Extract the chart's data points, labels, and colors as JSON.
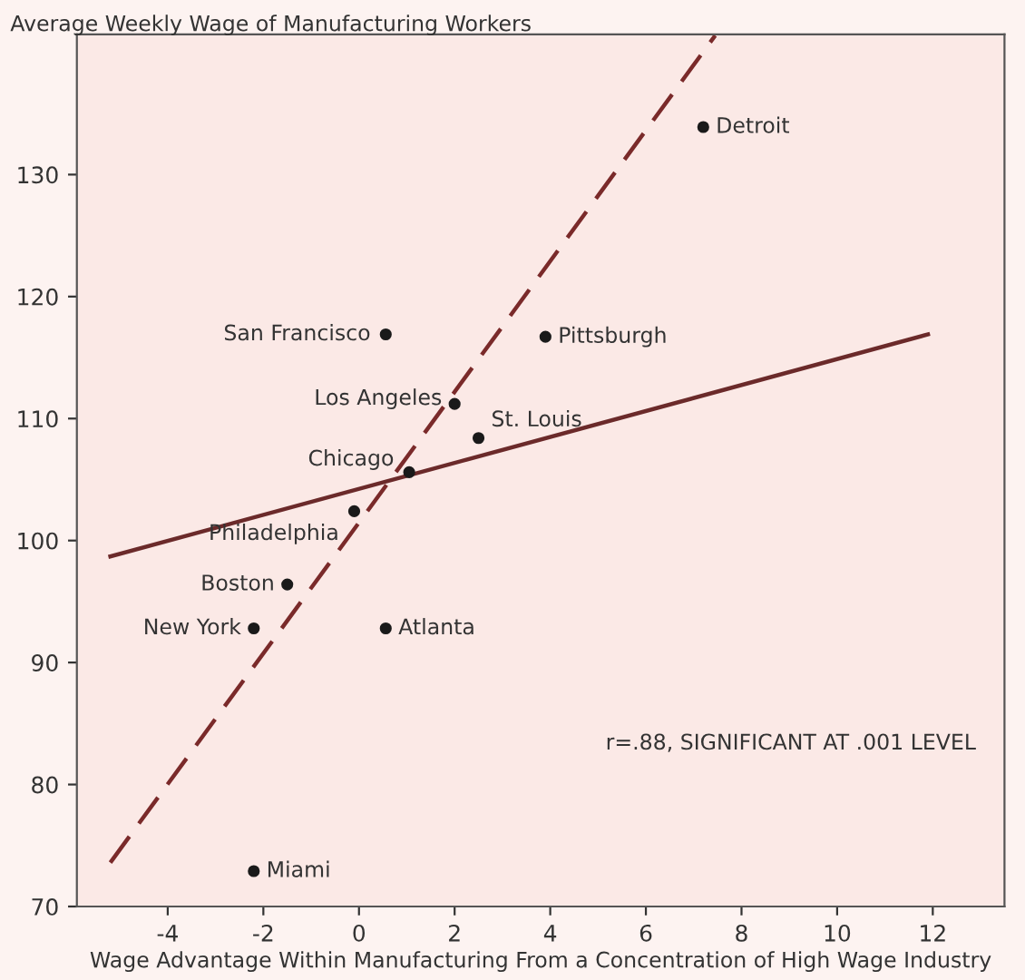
{
  "chart_data": {
    "type": "scatter",
    "ylabel": "Average Weekly Wage of Manufacturing Workers",
    "xlabel": "Wage Advantage Within Manufacturing From a Concentration of High Wage Industry",
    "xlim": [
      -5.9,
      13.5
    ],
    "ylim": [
      70,
      141.5
    ],
    "xticks": [
      -4,
      -2,
      0,
      2,
      4,
      6,
      8,
      10,
      12
    ],
    "yticks": [
      70,
      80,
      90,
      100,
      110,
      120,
      130
    ],
    "grid": false,
    "marker": "circle",
    "series": [
      {
        "color": "#1a1a1a",
        "x": [
          7.2,
          0.56,
          3.9,
          2.0,
          2.5,
          1.05,
          -0.1,
          -1.5,
          -2.2,
          0.56,
          -2.2
        ],
        "values": [
          133.9,
          116.9,
          116.7,
          111.2,
          108.4,
          105.6,
          102.4,
          96.4,
          92.8,
          92.8,
          72.9
        ]
      },
      {
        "type": "line",
        "color": "#7a2a2a",
        "line_style": "dashed",
        "marker": "none",
        "x": [
          -5.2,
          7.45
        ],
        "values": [
          73.6,
          141.4
        ]
      },
      {
        "type": "line",
        "color": "#6b2a2a",
        "line_style": "solid",
        "marker": "none",
        "x": [
          -5.2,
          11.9
        ],
        "values": [
          98.7,
          116.9
        ]
      }
    ],
    "annotations": [
      {
        "text": "Detroit",
        "x": 7.2,
        "y": 133.9
      },
      {
        "text": "San Francisco",
        "x": 0.56,
        "y": 116.9
      },
      {
        "text": "Pittsburgh",
        "x": 3.9,
        "y": 116.7
      },
      {
        "text": "Los Angeles",
        "x": 2.0,
        "y": 111.2
      },
      {
        "text": "St. Louis",
        "x": 2.5,
        "y": 108.4
      },
      {
        "text": "Chicago",
        "x": 1.05,
        "y": 105.6
      },
      {
        "text": "Philadelphia",
        "x": -0.1,
        "y": 102.4
      },
      {
        "text": "Boston",
        "x": -1.5,
        "y": 96.4
      },
      {
        "text": "New York",
        "x": -2.2,
        "y": 92.8
      },
      {
        "text": "Atlanta",
        "x": 0.56,
        "y": 92.8
      },
      {
        "text": "Miami",
        "x": -2.2,
        "y": 72.9
      },
      "r=.88, SIGNIFICANT AT .001 LEVEL"
    ]
  }
}
